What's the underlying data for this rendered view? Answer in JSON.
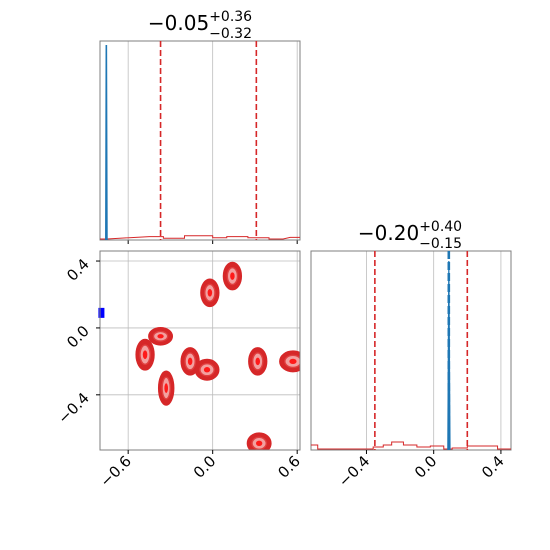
{
  "chart_data": [
    {
      "type": "area",
      "panel": "marginal-x",
      "title": {
        "median": "−0.05",
        "plus": "+0.36",
        "minus": "−0.32"
      },
      "xlim": [
        -0.8,
        0.62
      ],
      "x_ticks": [
        -0.6,
        0.0,
        0.6
      ],
      "quantiles": [
        -0.37,
        0.31
      ],
      "truth_x": -0.755,
      "blue_trace": {
        "peak_at_pixel_left": true
      },
      "red_histogram": [
        {
          "x0": -0.8,
          "x1": -0.75,
          "v": 0.0
        },
        {
          "x0": -0.45,
          "x1": -0.35,
          "v": 0.006
        },
        {
          "x0": -0.35,
          "x1": -0.2,
          "v": 0.002
        },
        {
          "x0": -0.2,
          "x1": 0.0,
          "v": 0.008
        },
        {
          "x0": 0.0,
          "x1": 0.1,
          "v": 0.003
        },
        {
          "x0": 0.1,
          "x1": 0.25,
          "v": 0.006
        },
        {
          "x0": 0.25,
          "x1": 0.4,
          "v": 0.003
        },
        {
          "x0": 0.4,
          "x1": 0.5,
          "v": 0.0
        },
        {
          "x0": 0.55,
          "x1": 0.62,
          "v": 0.004
        }
      ]
    },
    {
      "type": "scatter",
      "panel": "joint",
      "xlim": [
        -0.8,
        0.62
      ],
      "ylim": [
        -0.73,
        0.46
      ],
      "x_ticks": [
        -0.6,
        0.0,
        0.6
      ],
      "x_tick_labels": [
        "−0.6",
        "0.0",
        "0.6"
      ],
      "y_ticks": [
        -0.4,
        0.0,
        0.4
      ],
      "y_tick_labels": [
        "−0.4",
        "0.0",
        "0.4"
      ],
      "truth_point": {
        "x": -0.79,
        "y": 0.09
      },
      "blobs": [
        {
          "x": -0.02,
          "y": 0.21,
          "rx": 0.05,
          "ry": 0.07
        },
        {
          "x": 0.14,
          "y": 0.31,
          "rx": 0.05,
          "ry": 0.07
        },
        {
          "x": -0.37,
          "y": -0.05,
          "rx": 0.07,
          "ry": 0.04
        },
        {
          "x": -0.48,
          "y": -0.16,
          "rx": 0.05,
          "ry": 0.08
        },
        {
          "x": -0.33,
          "y": -0.36,
          "rx": 0.04,
          "ry": 0.09
        },
        {
          "x": -0.16,
          "y": -0.2,
          "rx": 0.05,
          "ry": 0.07
        },
        {
          "x": -0.04,
          "y": -0.25,
          "rx": 0.07,
          "ry": 0.05
        },
        {
          "x": 0.32,
          "y": -0.2,
          "rx": 0.05,
          "ry": 0.07
        },
        {
          "x": 0.57,
          "y": -0.2,
          "rx": 0.08,
          "ry": 0.05
        },
        {
          "x": 0.33,
          "y": -0.69,
          "rx": 0.07,
          "ry": 0.05
        }
      ]
    },
    {
      "type": "area",
      "panel": "marginal-y",
      "title": {
        "median": "−0.20",
        "plus": "+0.40",
        "minus": "−0.15"
      },
      "xlim": [
        -0.73,
        0.46
      ],
      "x_ticks": [
        -0.4,
        0.0,
        0.4
      ],
      "x_tick_labels": [
        "−0.4",
        "0.0",
        "0.4"
      ],
      "quantiles": [
        -0.35,
        0.2
      ],
      "truth_x": 0.09,
      "red_histogram": [
        {
          "x0": -0.73,
          "x1": -0.69,
          "v": 0.02
        },
        {
          "x0": -0.69,
          "x1": -0.36,
          "v": 0.0
        },
        {
          "x0": -0.36,
          "x1": -0.3,
          "v": 0.01
        },
        {
          "x0": -0.3,
          "x1": -0.25,
          "v": 0.02
        },
        {
          "x0": -0.25,
          "x1": -0.18,
          "v": 0.035
        },
        {
          "x0": -0.18,
          "x1": -0.1,
          "v": 0.02
        },
        {
          "x0": -0.1,
          "x1": -0.02,
          "v": 0.01
        },
        {
          "x0": -0.02,
          "x1": 0.06,
          "v": 0.015
        },
        {
          "x0": 0.06,
          "x1": 0.11,
          "v": 0.0
        },
        {
          "x0": 0.11,
          "x1": 0.2,
          "v": 0.005
        },
        {
          "x0": 0.2,
          "x1": 0.38,
          "v": 0.015
        },
        {
          "x0": 0.38,
          "x1": 0.46,
          "v": 0.0
        }
      ]
    }
  ],
  "colors": {
    "red": "#d62728",
    "blue_trace": "#1f77b4",
    "truth_marker": "#0000ff",
    "contour_outer": "#e04040",
    "contour_inner": "#f3a0a0",
    "frame": "#7f7f7f",
    "grid": "#bdbdbd"
  }
}
